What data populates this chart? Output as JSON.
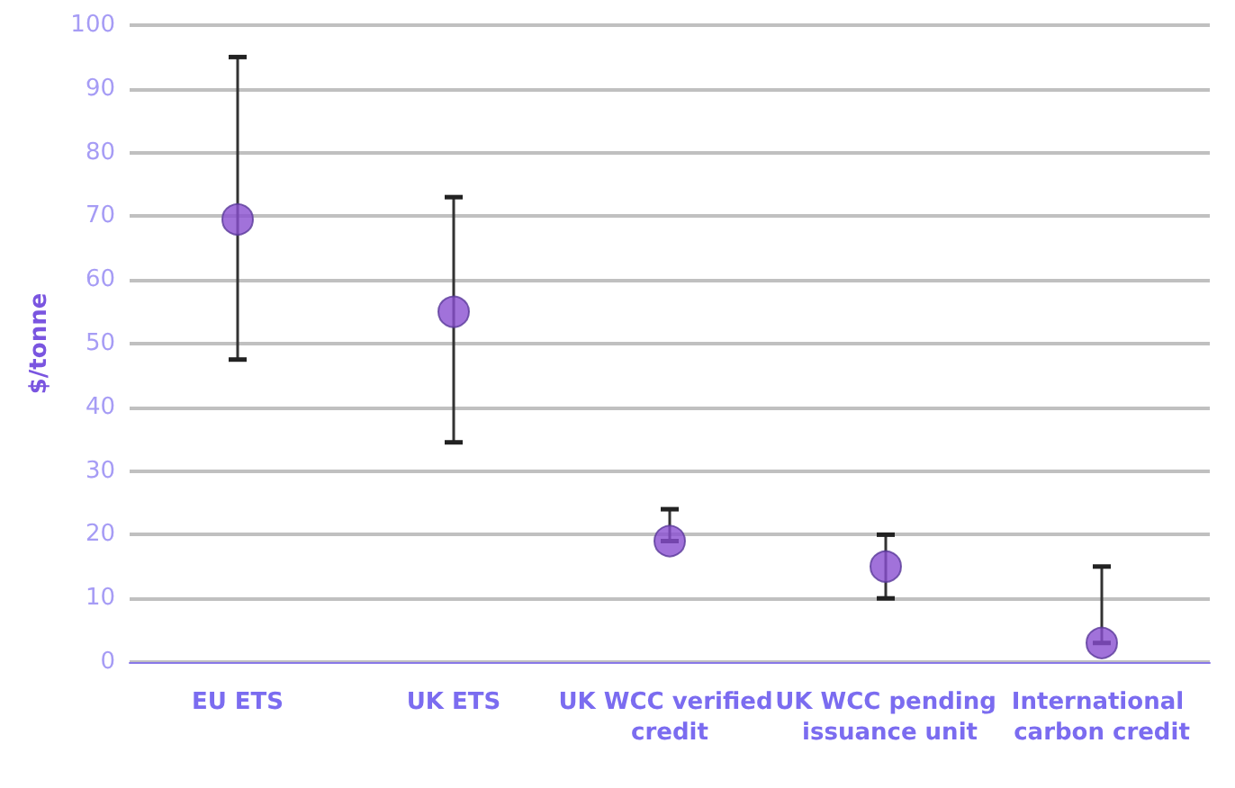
{
  "chart_data": {
    "type": "scatter",
    "ylabel": "$/tonne",
    "categories": [
      "EU ETS",
      "UK ETS",
      "UK WCC verified credit",
      "UK WCC pending issuance unit",
      "International carbon credit"
    ],
    "values": [
      69.5,
      55,
      19,
      15,
      3
    ],
    "errors": [
      [
        47.5,
        95
      ],
      [
        34.5,
        73
      ],
      [
        19,
        24
      ],
      [
        10,
        20
      ],
      [
        3,
        15
      ]
    ],
    "color": "#8a4fd1",
    "marker": "circle",
    "ylim": [
      0,
      100
    ],
    "yticks": [
      0,
      10,
      20,
      30,
      40,
      50,
      60,
      70,
      80,
      90,
      100
    ],
    "grid": "y"
  }
}
